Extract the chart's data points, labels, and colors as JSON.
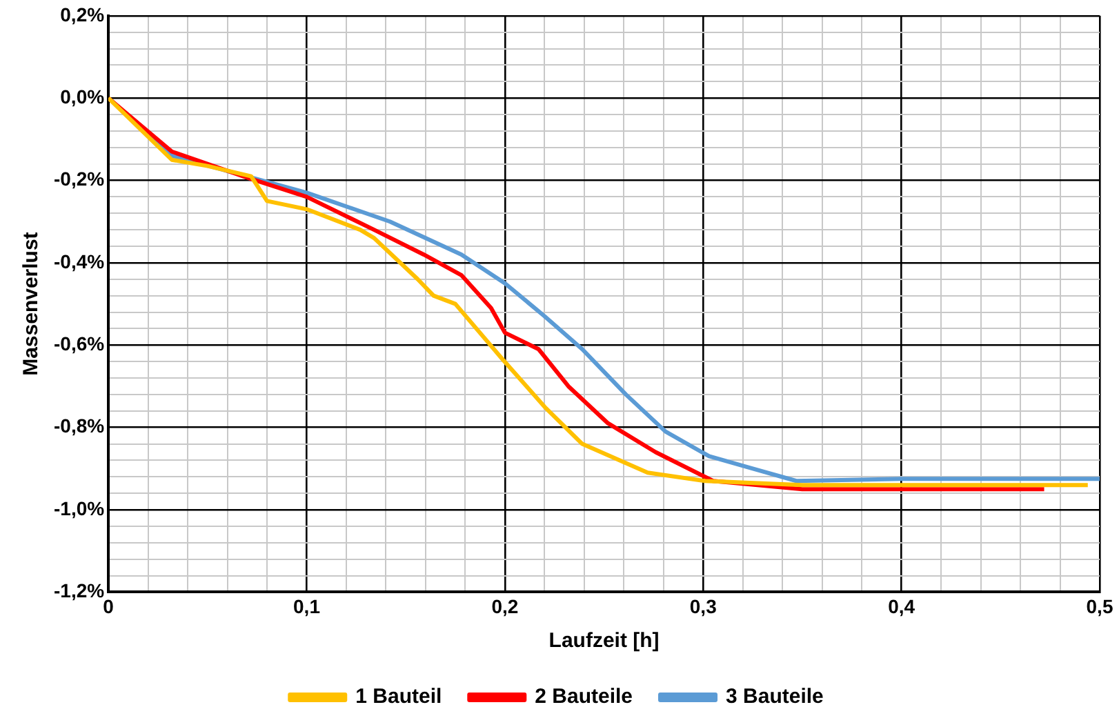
{
  "chart_data": {
    "type": "line",
    "xlabel": "Laufzeit [h]",
    "ylabel": "Massenverlust",
    "xlim": [
      0,
      0.5
    ],
    "ylim": [
      -1.2,
      0.2
    ],
    "xticks": [
      {
        "value": 0,
        "label": "0"
      },
      {
        "value": 0.02,
        "label": null
      },
      {
        "value": 0.04,
        "label": null
      },
      {
        "value": 0.06,
        "label": null
      },
      {
        "value": 0.08,
        "label": null
      },
      {
        "value": 0.1,
        "label": "0,1"
      },
      {
        "value": 0.12,
        "label": null
      },
      {
        "value": 0.14,
        "label": null
      },
      {
        "value": 0.16,
        "label": null
      },
      {
        "value": 0.18,
        "label": null
      },
      {
        "value": 0.2,
        "label": "0,2"
      },
      {
        "value": 0.22,
        "label": null
      },
      {
        "value": 0.24,
        "label": null
      },
      {
        "value": 0.26,
        "label": null
      },
      {
        "value": 0.28,
        "label": null
      },
      {
        "value": 0.3,
        "label": "0,3"
      },
      {
        "value": 0.32,
        "label": null
      },
      {
        "value": 0.34,
        "label": null
      },
      {
        "value": 0.36,
        "label": null
      },
      {
        "value": 0.38,
        "label": null
      },
      {
        "value": 0.4,
        "label": "0,4"
      },
      {
        "value": 0.42,
        "label": null
      },
      {
        "value": 0.44,
        "label": null
      },
      {
        "value": 0.46,
        "label": null
      },
      {
        "value": 0.48,
        "label": null
      },
      {
        "value": 0.5,
        "label": "0,5"
      }
    ],
    "yticks": [
      {
        "value": -1.2,
        "label": "-1,2%"
      },
      {
        "value": -1.16,
        "label": null
      },
      {
        "value": -1.12,
        "label": null
      },
      {
        "value": -1.08,
        "label": null
      },
      {
        "value": -1.04,
        "label": null
      },
      {
        "value": -1.0,
        "label": "-1,0%"
      },
      {
        "value": -0.96,
        "label": null
      },
      {
        "value": -0.92,
        "label": null
      },
      {
        "value": -0.88,
        "label": null
      },
      {
        "value": -0.84,
        "label": null
      },
      {
        "value": -0.8,
        "label": "-0,8%"
      },
      {
        "value": -0.76,
        "label": null
      },
      {
        "value": -0.72,
        "label": null
      },
      {
        "value": -0.68,
        "label": null
      },
      {
        "value": -0.64,
        "label": null
      },
      {
        "value": -0.6,
        "label": "-0,6%"
      },
      {
        "value": -0.56,
        "label": null
      },
      {
        "value": -0.52,
        "label": null
      },
      {
        "value": -0.48,
        "label": null
      },
      {
        "value": -0.44,
        "label": null
      },
      {
        "value": -0.4,
        "label": "-0,4%"
      },
      {
        "value": -0.36,
        "label": null
      },
      {
        "value": -0.32,
        "label": null
      },
      {
        "value": -0.28,
        "label": null
      },
      {
        "value": -0.24,
        "label": null
      },
      {
        "value": -0.2,
        "label": "-0,2%"
      },
      {
        "value": -0.16,
        "label": null
      },
      {
        "value": -0.12,
        "label": null
      },
      {
        "value": -0.08,
        "label": null
      },
      {
        "value": -0.04,
        "label": null
      },
      {
        "value": 0,
        "label": "0,0%"
      },
      {
        "value": 0.04,
        "label": null
      },
      {
        "value": 0.08,
        "label": null
      },
      {
        "value": 0.12,
        "label": null
      },
      {
        "value": 0.16,
        "label": null
      },
      {
        "value": 0.2,
        "label": "0,2%"
      }
    ],
    "grid": true,
    "legend": "bottom",
    "marker": "none",
    "line_style": "solid",
    "series": [
      {
        "name": "1 Bauteil",
        "color": "#ffc000",
        "x": [
          0,
          0.032,
          0.05,
          0.072,
          0.08,
          0.1,
          0.127,
          0.134,
          0.156,
          0.164,
          0.175,
          0.198,
          0.22,
          0.239,
          0.272,
          0.301,
          0.35,
          0.4,
          0.45,
          0.494
        ],
        "values": [
          0,
          -0.15,
          -0.165,
          -0.19,
          -0.25,
          -0.27,
          -0.32,
          -0.34,
          -0.44,
          -0.48,
          -0.5,
          -0.63,
          -0.75,
          -0.84,
          -0.91,
          -0.93,
          -0.94,
          -0.94,
          -0.94,
          -0.94
        ]
      },
      {
        "name": "2 Bauteile",
        "color": "#ff0000",
        "x": [
          0,
          0.032,
          0.068,
          0.1,
          0.134,
          0.159,
          0.178,
          0.193,
          0.2,
          0.217,
          0.232,
          0.252,
          0.276,
          0.305,
          0.35,
          0.4,
          0.45,
          0.472
        ],
        "values": [
          0,
          -0.13,
          -0.19,
          -0.24,
          -0.32,
          -0.38,
          -0.43,
          -0.51,
          -0.57,
          -0.61,
          -0.7,
          -0.79,
          -0.86,
          -0.93,
          -0.95,
          -0.95,
          -0.95,
          -0.95
        ]
      },
      {
        "name": "3 Bauteile",
        "color": "#5b9bd5",
        "x": [
          0,
          0.032,
          0.1,
          0.142,
          0.178,
          0.2,
          0.22,
          0.239,
          0.261,
          0.281,
          0.303,
          0.325,
          0.347,
          0.4,
          0.45,
          0.5
        ],
        "values": [
          0,
          -0.14,
          -0.23,
          -0.3,
          -0.38,
          -0.45,
          -0.53,
          -0.61,
          -0.72,
          -0.81,
          -0.87,
          -0.9,
          -0.93,
          -0.925,
          -0.925,
          -0.925
        ]
      }
    ]
  }
}
